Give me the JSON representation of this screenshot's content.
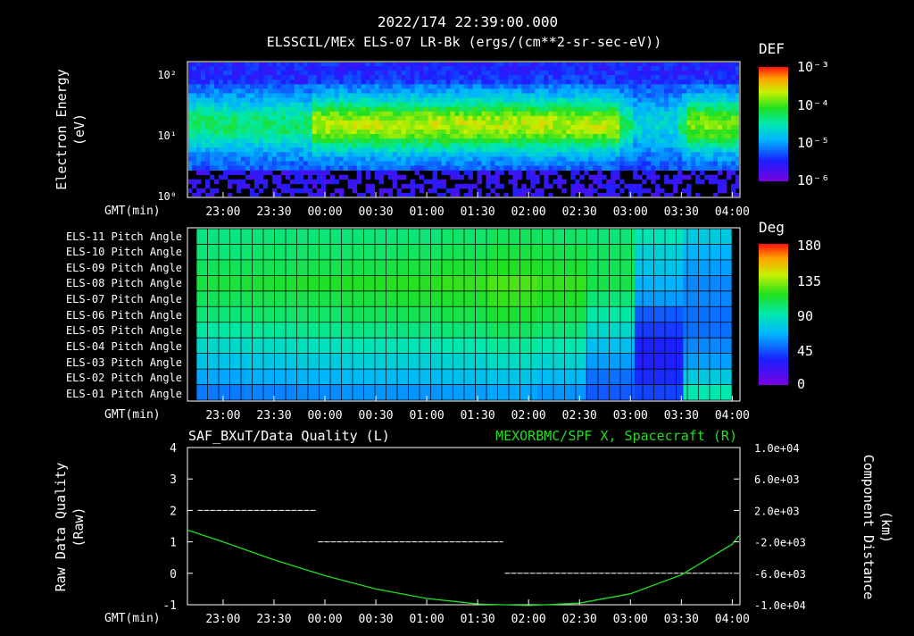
{
  "header": {
    "title": "2022/174 22:39:00.000",
    "subtitle": "ELSSCIL/MEx ELS-07 LR-Bk  (ergs/(cm**2-sr-sec-eV))"
  },
  "time_axis": {
    "label": "GMT(min)",
    "ticks": [
      "23:00",
      "23:30",
      "00:00",
      "00:30",
      "01:00",
      "01:30",
      "02:00",
      "02:30",
      "03:00",
      "03:30",
      "04:00"
    ]
  },
  "colors": {
    "quality_line": "#ffffff",
    "component_line": "#22dd22",
    "panel_frame": "#ffffff"
  },
  "spectrogram": {
    "ylabel": "Electron Energy (eV)",
    "ylabel_line1": "Electron Energy",
    "ylabel_line2": "(eV)",
    "y_ticks": [
      "10²",
      "10¹",
      "10⁰"
    ],
    "y_scale": "log",
    "ylim": [
      1,
      150
    ],
    "colorbar": {
      "title": "DEF",
      "labels": [
        "10⁻³",
        "10⁻⁴",
        "10⁻⁵",
        "10⁻⁶"
      ]
    }
  },
  "pitch_panel": {
    "rows": [
      "ELS-11 Pitch Angle",
      "ELS-10 Pitch Angle",
      "ELS-09 Pitch Angle",
      "ELS-08 Pitch Angle",
      "ELS-07 Pitch Angle",
      "ELS-06 Pitch Angle",
      "ELS-05 Pitch Angle",
      "ELS-04 Pitch Angle",
      "ELS-03 Pitch Angle",
      "ELS-02 Pitch Angle",
      "ELS-01 Pitch Angle"
    ],
    "colorbar": {
      "title": "Deg",
      "labels": [
        "180",
        "135",
        "90",
        "45",
        "0"
      ]
    }
  },
  "line_panel": {
    "left_title": "SAF_BXuT/Data Quality (L)",
    "right_title": "MEXORBMC/SPF X, Spacecraft (R)",
    "left_ylabel_line1": "Raw Data Quality",
    "left_ylabel_line2": "(Raw)",
    "right_ylabel_line1": "Component Distance",
    "right_ylabel_line2": "(km)",
    "left_ticks": [
      "4",
      "3",
      "2",
      "1",
      "0",
      "-1"
    ],
    "right_ticks": [
      "1.0e+04",
      "6.0e+03",
      "2.0e+03",
      "-2.0e+03",
      "-6.0e+03",
      "-1.0e+04"
    ]
  },
  "chart_data": [
    {
      "type": "heatmap",
      "title": "ELSSCIL/MEx ELS-07 LR-Bk  (ergs/(cm**2-sr-sec-eV))",
      "xlabel": "GMT(min)",
      "ylabel": "Electron Energy (eV)",
      "x_range": [
        "22:39",
        "04:04"
      ],
      "ylim": [
        1,
        150
      ],
      "y_scale": "log",
      "colorbar": {
        "title": "DEF",
        "range": [
          1e-06,
          0.001
        ],
        "scale": "log"
      }
    },
    {
      "type": "heatmap",
      "xlabel": "GMT(min)",
      "rows": [
        "ELS-11",
        "ELS-10",
        "ELS-09",
        "ELS-08",
        "ELS-07",
        "ELS-06",
        "ELS-05",
        "ELS-04",
        "ELS-03",
        "ELS-02",
        "ELS-01"
      ],
      "colorbar": {
        "title": "Deg",
        "range": [
          0,
          180
        ]
      },
      "x": [
        "22:45",
        "23:15",
        "23:45",
        "00:15",
        "00:45",
        "01:15",
        "01:45",
        "02:15",
        "02:45",
        "03:15",
        "03:45"
      ],
      "values": [
        [
          98,
          100,
          100,
          100,
          100,
          102,
          105,
          103,
          100,
          88,
          75
        ],
        [
          100,
          102,
          103,
          103,
          104,
          106,
          110,
          108,
          104,
          78,
          65
        ],
        [
          105,
          106,
          107,
          108,
          110,
          112,
          115,
          112,
          106,
          72,
          60
        ],
        [
          110,
          112,
          114,
          115,
          116,
          118,
          122,
          118,
          108,
          65,
          55
        ],
        [
          105,
          107,
          108,
          110,
          112,
          113,
          118,
          114,
          100,
          60,
          55
        ],
        [
          100,
          102,
          103,
          105,
          106,
          108,
          112,
          108,
          92,
          45,
          50
        ],
        [
          92,
          94,
          96,
          97,
          98,
          100,
          104,
          100,
          82,
          38,
          50
        ],
        [
          82,
          84,
          86,
          88,
          88,
          90,
          94,
          90,
          70,
          32,
          55
        ],
        [
          72,
          74,
          76,
          78,
          78,
          80,
          84,
          80,
          60,
          30,
          60
        ],
        [
          62,
          64,
          66,
          68,
          68,
          70,
          72,
          68,
          50,
          35,
          75
        ],
        [
          52,
          54,
          56,
          58,
          58,
          60,
          62,
          58,
          45,
          40,
          90
        ]
      ]
    },
    {
      "type": "line",
      "title": "SAF_BXuT/Data Quality (L)",
      "xlabel": "GMT(min)",
      "ylabel": "Raw Data Quality (Raw)",
      "ylim": [
        -1,
        4
      ],
      "series": [
        {
          "name": "SAF_BXuT/Data Quality",
          "x": [
            "22:45",
            "23:55",
            "23:56",
            "01:45",
            "01:46",
            "04:00"
          ],
          "y": [
            2,
            2,
            1,
            1,
            0,
            0
          ]
        }
      ]
    },
    {
      "type": "line",
      "title": "MEXORBMC/SPF X, Spacecraft (R)",
      "xlabel": "GMT(min)",
      "ylabel": "Component Distance (km)",
      "ylim": [
        -10000,
        10000
      ],
      "series": [
        {
          "name": "MEXORBMC/SPF X, Spacecraft",
          "x": [
            "22:39",
            "23:00",
            "23:30",
            "00:00",
            "00:30",
            "01:00",
            "01:30",
            "02:00",
            "02:30",
            "03:00",
            "03:30",
            "04:00",
            "04:04"
          ],
          "y": [
            -500,
            -2000,
            -4300,
            -6300,
            -8000,
            -9200,
            -9900,
            -10100,
            -9800,
            -8600,
            -6200,
            -2300,
            -1200
          ]
        }
      ]
    }
  ]
}
